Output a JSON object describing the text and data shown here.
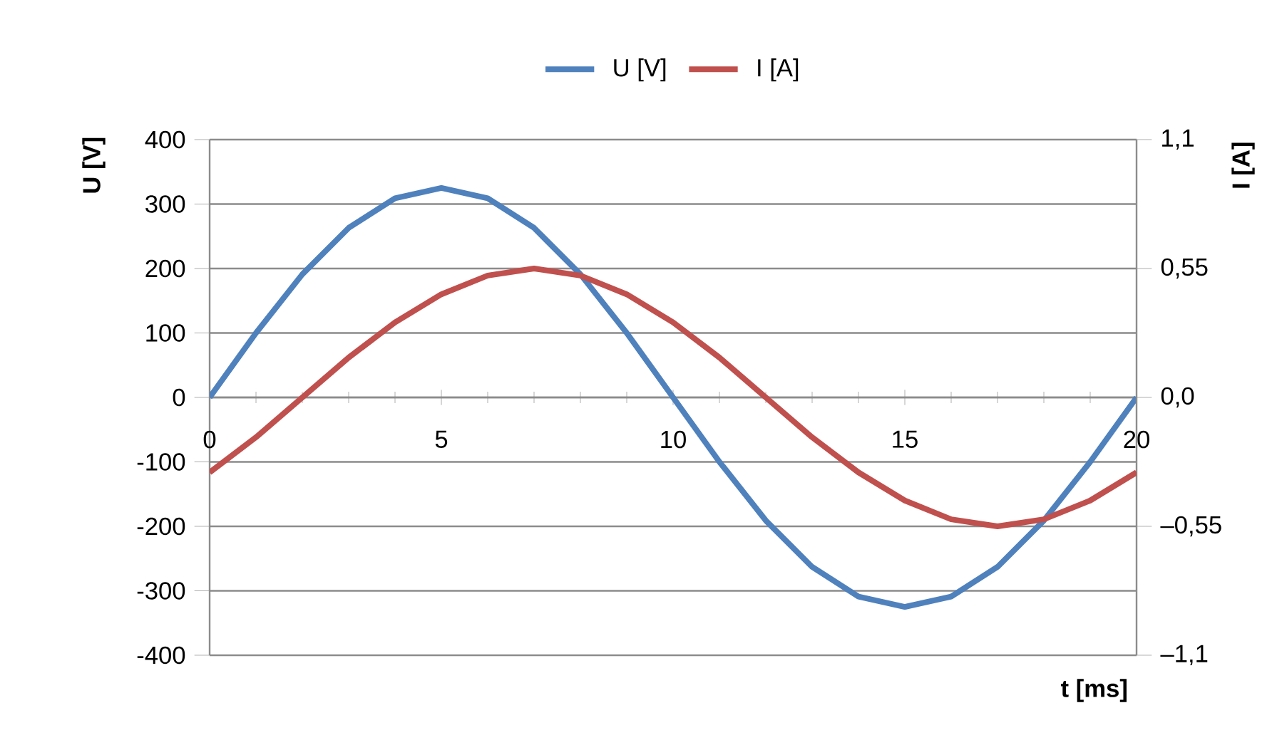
{
  "chart_data": {
    "type": "line",
    "x": [
      0,
      1,
      2,
      3,
      4,
      5,
      6,
      7,
      8,
      9,
      10,
      11,
      12,
      13,
      14,
      15,
      16,
      17,
      18,
      19,
      20
    ],
    "series": [
      {
        "name": "U [V]",
        "color": "#4f81bd",
        "values": [
          0,
          100,
          191,
          263,
          309,
          325,
          309,
          263,
          191,
          100,
          0,
          -100,
          -191,
          -263,
          -309,
          -325,
          -309,
          -263,
          -191,
          -100,
          0
        ]
      },
      {
        "name": "I [A]",
        "color": "#c0504d",
        "axis": "y2",
        "values": [
          -0.32,
          -0.17,
          0,
          0.17,
          0.32,
          0.44,
          0.52,
          0.55,
          0.52,
          0.44,
          0.32,
          0.17,
          0,
          -0.17,
          -0.32,
          -0.44,
          -0.52,
          -0.55,
          -0.52,
          -0.44,
          -0.32
        ]
      }
    ],
    "xlabel": "t [ms]",
    "ylabel": "U [V]",
    "y2label": "I [A]",
    "xlim": [
      0,
      20
    ],
    "xticks": [
      0,
      5,
      10,
      15,
      20
    ],
    "ylim": [
      -400,
      400
    ],
    "yticks": [
      -400,
      -300,
      -200,
      -100,
      0,
      100,
      200,
      300,
      400
    ],
    "y2lim": [
      -1.1,
      1.1
    ],
    "y2ticks": [
      {
        "value": -1.1,
        "label": "–1,1"
      },
      {
        "value": -0.55,
        "label": "–0,55"
      },
      {
        "value": 0,
        "label": "0,0"
      },
      {
        "value": 0.55,
        "label": "0,55"
      },
      {
        "value": 1.1,
        "label": "1,1"
      }
    ],
    "grid": "y",
    "legend": "top"
  }
}
